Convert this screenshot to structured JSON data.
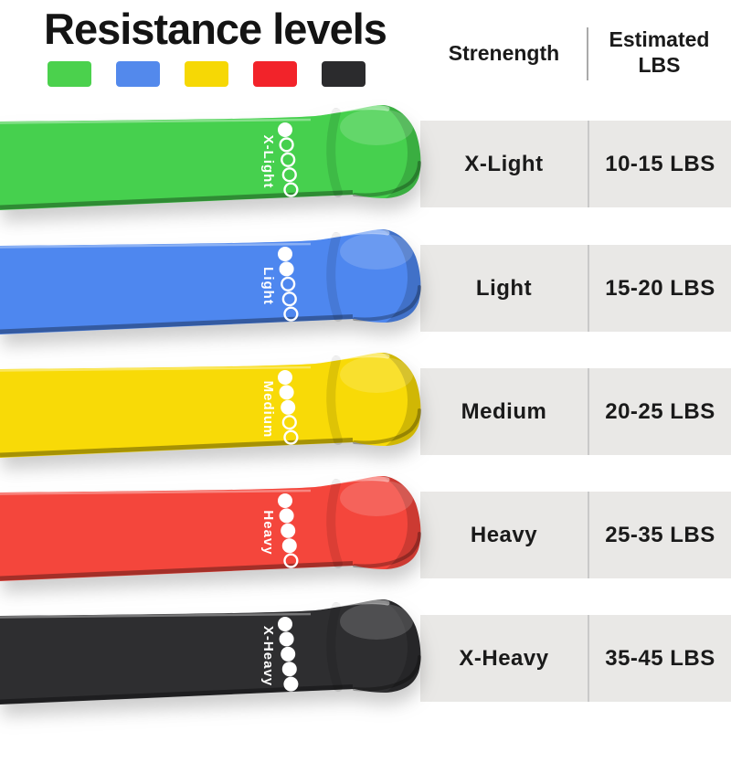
{
  "title": "Resistance levels",
  "legend_swatches": [
    {
      "name": "green",
      "color": "#4bd14d"
    },
    {
      "name": "blue",
      "color": "#5389ec"
    },
    {
      "name": "yellow",
      "color": "#f6d805"
    },
    {
      "name": "red",
      "color": "#f2232a"
    },
    {
      "name": "black",
      "color": "#2b2b2d"
    }
  ],
  "table": {
    "header": {
      "strength": "Strenength",
      "estimated": "Estimated\nLBS"
    },
    "rows": [
      {
        "strength": "X-Light",
        "lbs": "10-15 LBS"
      },
      {
        "strength": "Light",
        "lbs": "15-20 LBS"
      },
      {
        "strength": "Medium",
        "lbs": "20-25 LBS"
      },
      {
        "strength": "Heavy",
        "lbs": "25-35 LBS"
      },
      {
        "strength": "X-Heavy",
        "lbs": "35-45 LBS"
      }
    ]
  },
  "bands": [
    {
      "label": "X-Light",
      "color": "#46d04e",
      "dots_filled": 1,
      "dots_total": 5
    },
    {
      "label": "Light",
      "color": "#4e87ef",
      "dots_filled": 2,
      "dots_total": 5
    },
    {
      "label": "Medium",
      "color": "#f8da07",
      "dots_filled": 3,
      "dots_total": 5
    },
    {
      "label": "Heavy",
      "color": "#f4463c",
      "dots_filled": 4,
      "dots_total": 5
    },
    {
      "label": "X-Heavy",
      "color": "#2e2e30",
      "dots_filled": 5,
      "dots_total": 5
    }
  ]
}
